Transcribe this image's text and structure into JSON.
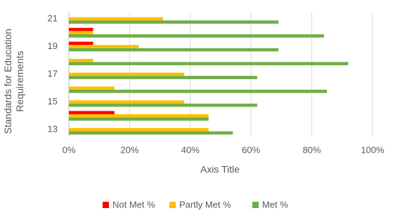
{
  "chart_data": {
    "type": "hbar",
    "x_label": "Axis Title",
    "y_label": "Standards for Education Requirements",
    "categories": [
      13,
      null,
      15,
      null,
      17,
      null,
      19,
      null,
      21
    ],
    "series": [
      {
        "name": "Not Met %",
        "color": "#ff0000",
        "values": [
          0,
          15,
          0,
          0,
          0,
          0,
          8,
          8,
          0
        ]
      },
      {
        "name": "Partly Met %",
        "color": "#ffc000",
        "values": [
          46,
          46,
          38,
          15,
          38,
          8,
          23,
          8,
          31
        ]
      },
      {
        "name": "Met %",
        "color": "#70ad47",
        "values": [
          54,
          46,
          62,
          85,
          62,
          92,
          69,
          84,
          69
        ]
      }
    ],
    "xlim": [
      0,
      100
    ],
    "xticks": [
      {
        "value": 0,
        "label": "0%"
      },
      {
        "value": 20,
        "label": "20%"
      },
      {
        "value": 40,
        "label": "40%"
      },
      {
        "value": 60,
        "label": "60%"
      },
      {
        "value": 80,
        "label": "80%"
      },
      {
        "value": 100,
        "label": "100%"
      }
    ],
    "grid": true,
    "legend": "bottom"
  }
}
